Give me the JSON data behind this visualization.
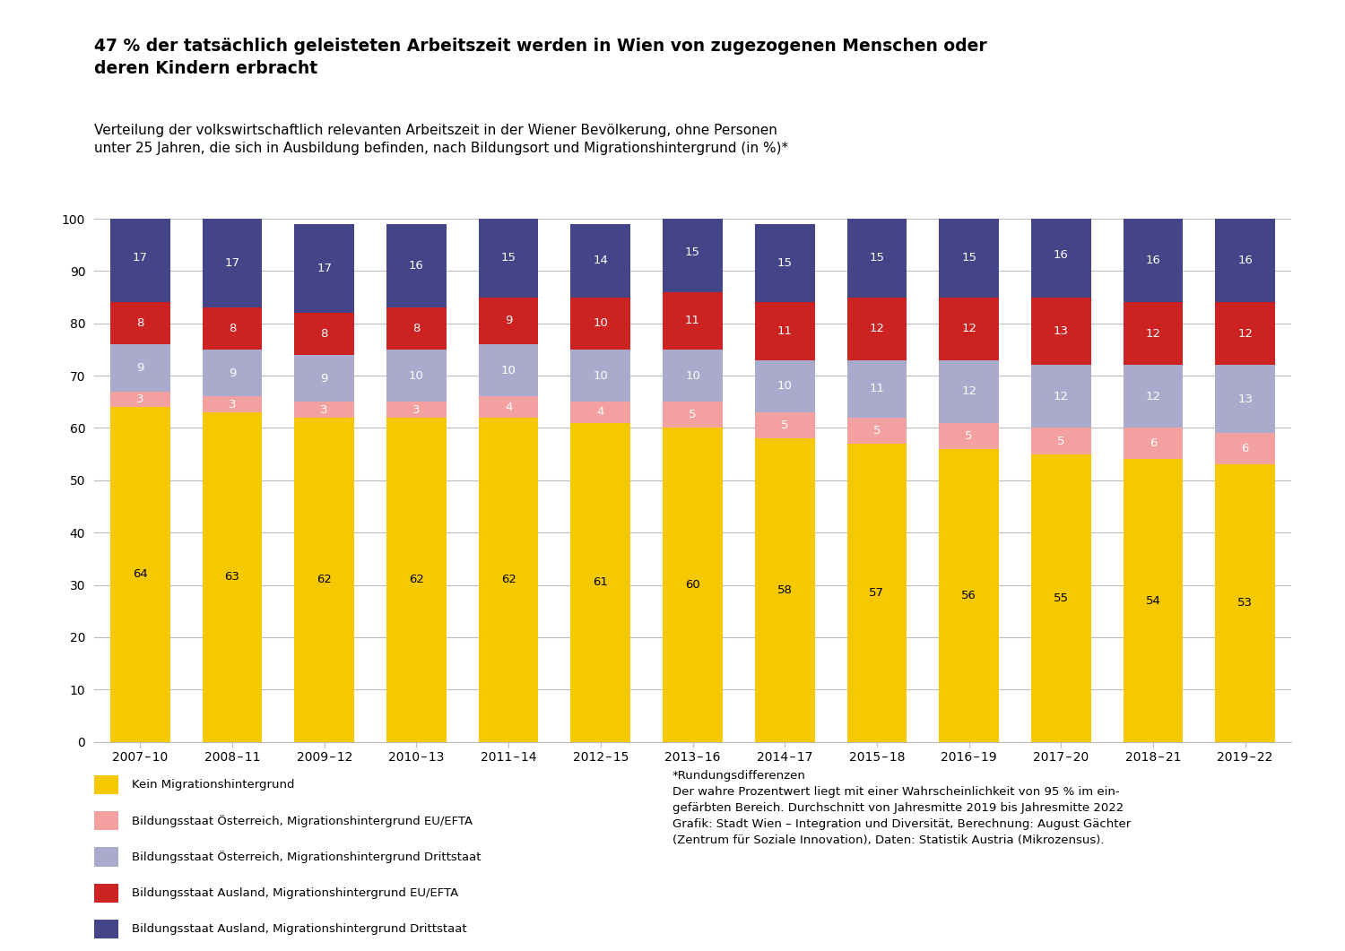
{
  "title_bold": "47 % der tatsächlich geleisteten Arbeitszeit werden in Wien von zugezogenen Menschen oder\nderen Kindern erbracht",
  "title_normal": "Verteilung der volkswirtschaftlich relevanten Arbeitszeit in der Wiener Bevölkerung, ohne Personen\nunter 25 Jahren, die sich in Ausbildung befinden, nach Bildungsort und Migrationshintergrund (in %)*",
  "categories": [
    "2007 – 10",
    "2008 – 11",
    "2009 – 12",
    "2010 – 13",
    "2011 – 14",
    "2012 – 15",
    "2013 – 16",
    "2014 – 17",
    "2015 – 18",
    "2016 – 19",
    "2017 – 20",
    "2018 – 21",
    "2019 – 22"
  ],
  "data": {
    "kein": [
      64,
      63,
      62,
      62,
      62,
      61,
      60,
      58,
      57,
      56,
      55,
      54,
      53
    ],
    "oe_eu": [
      3,
      3,
      3,
      3,
      4,
      4,
      5,
      5,
      5,
      5,
      5,
      6,
      6
    ],
    "oe_dritt": [
      9,
      9,
      9,
      10,
      10,
      10,
      10,
      10,
      11,
      12,
      12,
      12,
      13
    ],
    "aus_eu": [
      8,
      8,
      8,
      8,
      9,
      10,
      11,
      11,
      12,
      12,
      13,
      12,
      12
    ],
    "aus_dritt": [
      17,
      17,
      17,
      16,
      15,
      14,
      15,
      15,
      15,
      15,
      16,
      16,
      16
    ]
  },
  "colors": {
    "kein": "#F5C800",
    "oe_eu": "#F2A0A0",
    "oe_dritt": "#AAAACC",
    "aus_eu": "#CC2222",
    "aus_dritt": "#444488"
  },
  "legend_labels": [
    "Kein Migrationshintergrund",
    "Bildungsstaat Österreich, Migrationshintergrund EU/EFTA",
    "Bildungsstaat Österreich, Migrationshintergrund Drittstaat",
    "Bildungsstaat Ausland, Migrationshintergrund EU/EFTA",
    "Bildungsstaat Ausland, Migrationshintergrund Drittstaat"
  ],
  "legend_keys": [
    "kein",
    "oe_eu",
    "oe_dritt",
    "aus_eu",
    "aus_dritt"
  ],
  "note_left": "*Rundungsdifferenzen\nDer wahre Prozentwert liegt mit einer Wahrscheinlichkeit von 95 % im ein-\ngefärbten Bereich. Durchschnitt von Jahresmitte 2019 bis Jahresmitte 2022\nGrafik: Stadt Wien – Integration und Diversität, Berechnung: August Gächter\n(Zentrum für Soziale Innovation), Daten: Statistik Austria (Mikrozensus).",
  "ylim": [
    0,
    100
  ],
  "yticks": [
    0,
    10,
    20,
    30,
    40,
    50,
    60,
    70,
    80,
    90,
    100
  ],
  "background_color": "#FFFFFF",
  "bar_width": 0.65
}
